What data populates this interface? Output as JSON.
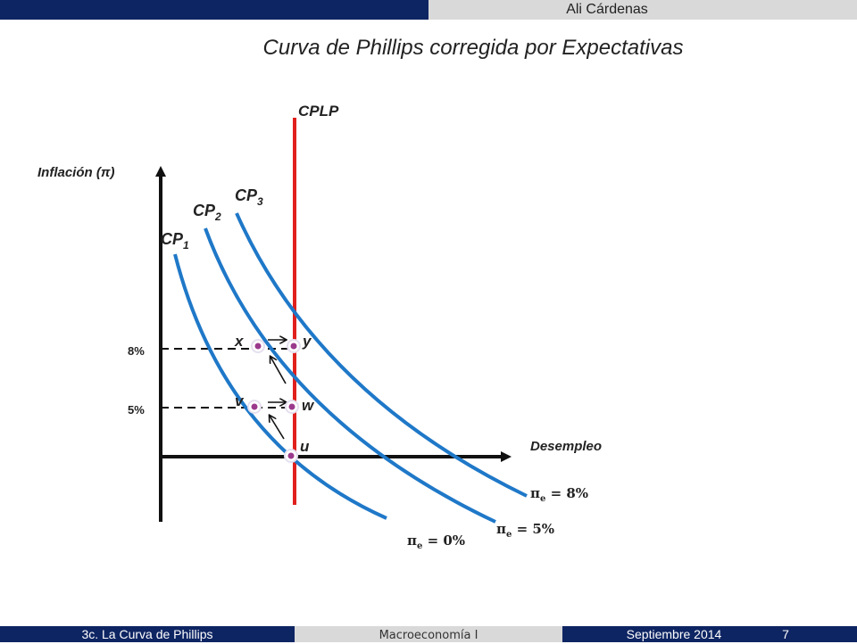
{
  "header": {
    "author": "Ali Cárdenas"
  },
  "title": "Curva de Phillips corregida por Expectativas",
  "diagram": {
    "y_axis_label": "Inflación (π)",
    "x_axis_label": "Desempleo",
    "lr_curve_label": "CPLP",
    "curve_labels": [
      {
        "base": "CP",
        "sub": "1"
      },
      {
        "base": "CP",
        "sub": "2"
      },
      {
        "base": "CP",
        "sub": "3"
      }
    ],
    "ticks": [
      "8%",
      "5%"
    ],
    "points": [
      "x",
      "y",
      "v",
      "w",
      "u"
    ],
    "expectation_labels": [
      {
        "sym": "π",
        "sub": "e",
        "rest": " = 8%"
      },
      {
        "sym": "π",
        "sub": "e",
        "rest": " = 5%"
      },
      {
        "sym": "π",
        "sub": "e",
        "rest": " = 0%"
      }
    ],
    "colors": {
      "curves": "#1f78c8",
      "lr_line": "#e0201b",
      "axes": "#111111",
      "points": "#9b3a8c"
    }
  },
  "footer": {
    "section": "3c. La Curva de Phillips",
    "course": "Macroeconomía I",
    "date": "Septiembre 2014",
    "page": "7"
  }
}
